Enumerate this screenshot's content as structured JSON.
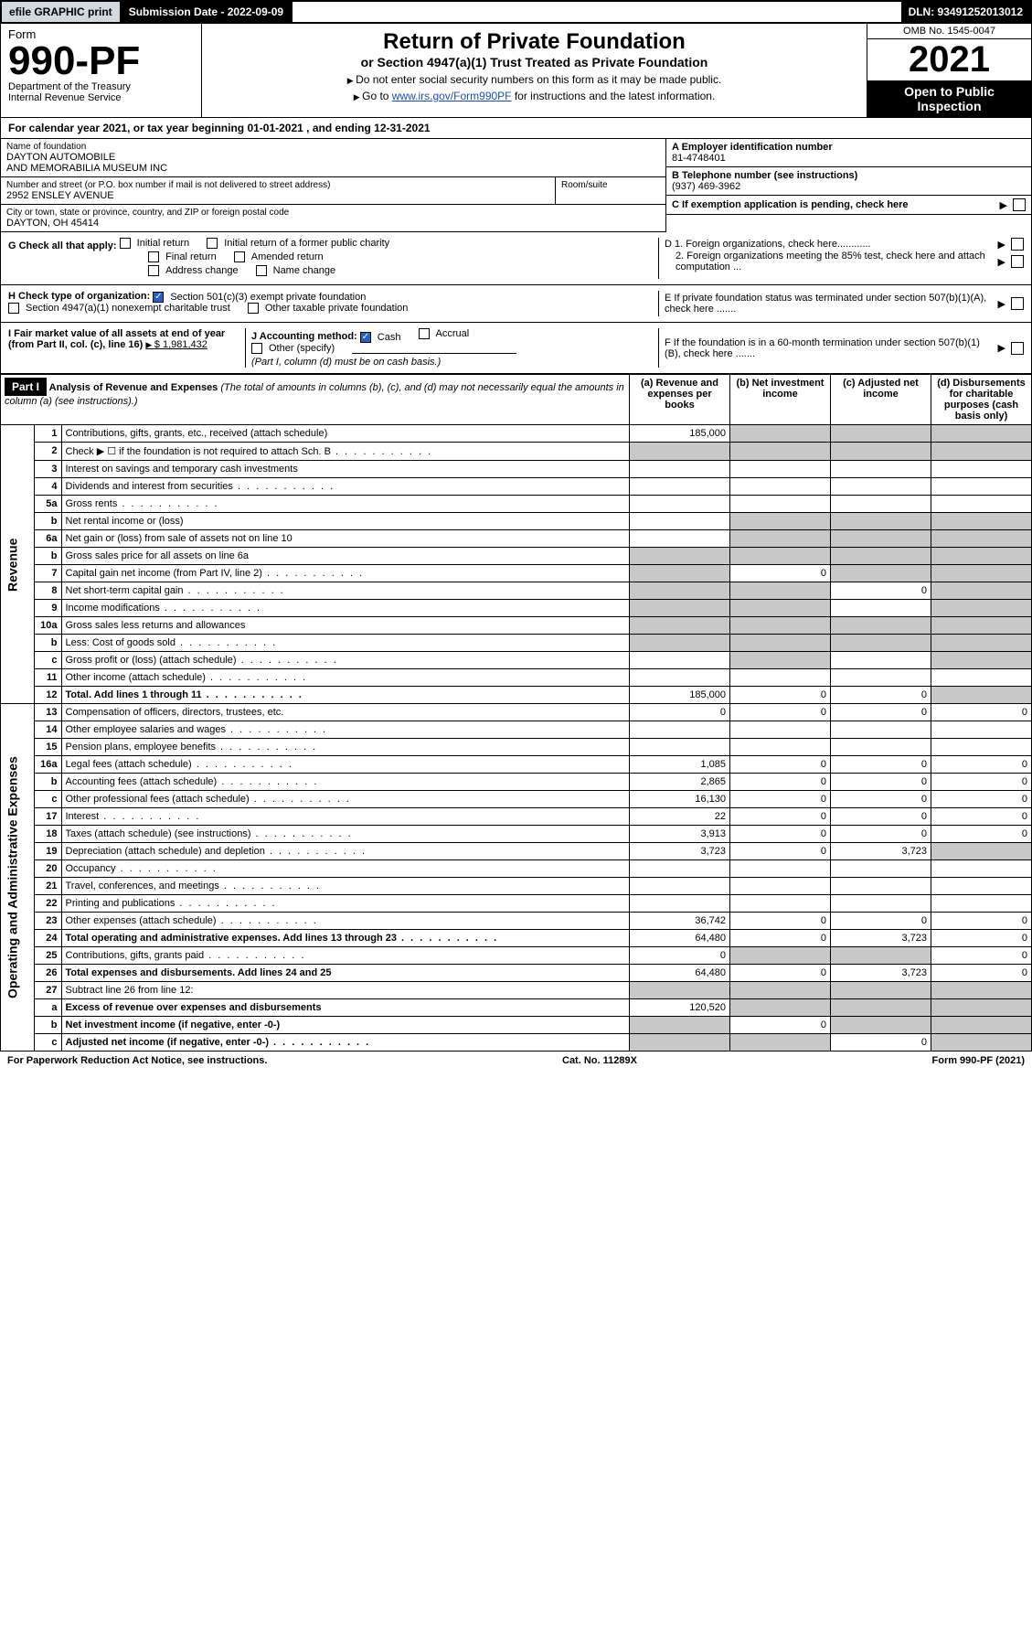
{
  "topbar": {
    "efile": "efile GRAPHIC print",
    "submission_label": "Submission Date - 2022-09-09",
    "dln": "DLN: 93491252013012"
  },
  "header": {
    "form_word": "Form",
    "form_no": "990-PF",
    "dept1": "Department of the Treasury",
    "dept2": "Internal Revenue Service",
    "title": "Return of Private Foundation",
    "subtitle": "or Section 4947(a)(1) Trust Treated as Private Foundation",
    "note1": "Do not enter social security numbers on this form as it may be made public.",
    "note2_pre": "Go to ",
    "note2_link": "www.irs.gov/Form990PF",
    "note2_post": " for instructions and the latest information.",
    "omb": "OMB No. 1545-0047",
    "year": "2021",
    "open": "Open to Public Inspection"
  },
  "calyear": "For calendar year 2021, or tax year beginning 01-01-2021            , and ending 12-31-2021",
  "name": {
    "lbl": "Name of foundation",
    "val1": "DAYTON AUTOMOBILE",
    "val2": "AND MEMORABILIA MUSEUM INC"
  },
  "addr": {
    "lbl": "Number and street (or P.O. box number if mail is not delivered to street address)",
    "val": "2952 ENSLEY AVENUE",
    "room_lbl": "Room/suite"
  },
  "city": {
    "lbl": "City or town, state or province, country, and ZIP or foreign postal code",
    "val": "DAYTON, OH  45414"
  },
  "ein": {
    "lbl": "A Employer identification number",
    "val": "81-4748401"
  },
  "phone": {
    "lbl": "B Telephone number (see instructions)",
    "val": "(937) 469-3962"
  },
  "boxC": "C If exemption application is pending, check here",
  "boxD1": "D 1. Foreign organizations, check here............",
  "boxD2": "2. Foreign organizations meeting the 85% test, check here and attach computation ...",
  "boxE": "E  If private foundation status was terminated under section 507(b)(1)(A), check here .......",
  "boxF": "F  If the foundation is in a 60-month termination under section 507(b)(1)(B), check here .......",
  "G": {
    "lbl": "G Check all that apply:",
    "c1": "Initial return",
    "c2": "Initial return of a former public charity",
    "c3": "Final return",
    "c4": "Amended return",
    "c5": "Address change",
    "c6": "Name change"
  },
  "H": {
    "lbl": "H Check type of organization:",
    "c1": "Section 501(c)(3) exempt private foundation",
    "c2": "Section 4947(a)(1) nonexempt charitable trust",
    "c3": "Other taxable private foundation"
  },
  "I": {
    "lbl": "I Fair market value of all assets at end of year (from Part II, col. (c), line 16)",
    "val": "$  1,981,432"
  },
  "J": {
    "lbl": "J Accounting method:",
    "c1": "Cash",
    "c2": "Accrual",
    "c3": "Other (specify)",
    "note": "(Part I, column (d) must be on cash basis.)"
  },
  "part1": {
    "hdr": "Part I",
    "title": "Analysis of Revenue and Expenses",
    "title_note": " (The total of amounts in columns (b), (c), and (d) may not necessarily equal the amounts in column (a) (see instructions).)",
    "col_a": "(a)   Revenue and expenses per books",
    "col_b": "(b)   Net investment income",
    "col_c": "(c)   Adjusted net income",
    "col_d": "(d)   Disbursements for charitable purposes (cash basis only)"
  },
  "vert": {
    "rev": "Revenue",
    "exp": "Operating and Administrative Expenses"
  },
  "rows": [
    {
      "n": "1",
      "d": "Contributions, gifts, grants, etc., received (attach schedule)",
      "a": "185,000",
      "sb": true,
      "sc": true,
      "sd": true
    },
    {
      "n": "2",
      "d": "Check ▶ ☐ if the foundation is not required to attach Sch. B",
      "sa": true,
      "sb": true,
      "sc": true,
      "sd": true,
      "dots": true
    },
    {
      "n": "3",
      "d": "Interest on savings and temporary cash investments"
    },
    {
      "n": "4",
      "d": "Dividends and interest from securities",
      "dots": true
    },
    {
      "n": "5a",
      "d": "Gross rents",
      "dots": true
    },
    {
      "n": "b",
      "d": "Net rental income or (loss)",
      "sb": true,
      "sc": true,
      "sd": true
    },
    {
      "n": "6a",
      "d": "Net gain or (loss) from sale of assets not on line 10",
      "sb": true,
      "sc": true,
      "sd": true
    },
    {
      "n": "b",
      "d": "Gross sales price for all assets on line 6a",
      "sa": true,
      "sb": true,
      "sc": true,
      "sd": true
    },
    {
      "n": "7",
      "d": "Capital gain net income (from Part IV, line 2)",
      "dots": true,
      "sa": true,
      "b": "0",
      "sc": true,
      "sd": true
    },
    {
      "n": "8",
      "d": "Net short-term capital gain",
      "dots": true,
      "sa": true,
      "sb": true,
      "c": "0",
      "sd": true
    },
    {
      "n": "9",
      "d": "Income modifications",
      "dots": true,
      "sa": true,
      "sb": true,
      "sd": true
    },
    {
      "n": "10a",
      "d": "Gross sales less returns and allowances",
      "sa": true,
      "sb": true,
      "sc": true,
      "sd": true
    },
    {
      "n": "b",
      "d": "Less: Cost of goods sold",
      "dots": true,
      "sa": true,
      "sb": true,
      "sc": true,
      "sd": true
    },
    {
      "n": "c",
      "d": "Gross profit or (loss) (attach schedule)",
      "dots": true,
      "sb": true,
      "sd": true
    },
    {
      "n": "11",
      "d": "Other income (attach schedule)",
      "dots": true
    },
    {
      "n": "12",
      "d": "Total. Add lines 1 through 11",
      "dots": true,
      "bold": true,
      "a": "185,000",
      "b": "0",
      "c": "0",
      "sd": true
    },
    {
      "n": "13",
      "d": "Compensation of officers, directors, trustees, etc.",
      "a": "0",
      "b": "0",
      "c": "0",
      "dcol": "0"
    },
    {
      "n": "14",
      "d": "Other employee salaries and wages",
      "dots": true
    },
    {
      "n": "15",
      "d": "Pension plans, employee benefits",
      "dots": true
    },
    {
      "n": "16a",
      "d": "Legal fees (attach schedule)",
      "dots": true,
      "a": "1,085",
      "b": "0",
      "c": "0",
      "dcol": "0"
    },
    {
      "n": "b",
      "d": "Accounting fees (attach schedule)",
      "dots": true,
      "a": "2,865",
      "b": "0",
      "c": "0",
      "dcol": "0"
    },
    {
      "n": "c",
      "d": "Other professional fees (attach schedule)",
      "dots": true,
      "a": "16,130",
      "b": "0",
      "c": "0",
      "dcol": "0"
    },
    {
      "n": "17",
      "d": "Interest",
      "dots": true,
      "a": "22",
      "b": "0",
      "c": "0",
      "dcol": "0"
    },
    {
      "n": "18",
      "d": "Taxes (attach schedule) (see instructions)",
      "dots": true,
      "a": "3,913",
      "b": "0",
      "c": "0",
      "dcol": "0"
    },
    {
      "n": "19",
      "d": "Depreciation (attach schedule) and depletion",
      "dots": true,
      "a": "3,723",
      "b": "0",
      "c": "3,723",
      "sd": true
    },
    {
      "n": "20",
      "d": "Occupancy",
      "dots": true
    },
    {
      "n": "21",
      "d": "Travel, conferences, and meetings",
      "dots": true
    },
    {
      "n": "22",
      "d": "Printing and publications",
      "dots": true
    },
    {
      "n": "23",
      "d": "Other expenses (attach schedule)",
      "dots": true,
      "a": "36,742",
      "b": "0",
      "c": "0",
      "dcol": "0"
    },
    {
      "n": "24",
      "d": "Total operating and administrative expenses. Add lines 13 through 23",
      "dots": true,
      "bold": true,
      "a": "64,480",
      "b": "0",
      "c": "3,723",
      "dcol": "0"
    },
    {
      "n": "25",
      "d": "Contributions, gifts, grants paid",
      "dots": true,
      "a": "0",
      "sb": true,
      "sc": true,
      "dcol": "0"
    },
    {
      "n": "26",
      "d": "Total expenses and disbursements. Add lines 24 and 25",
      "bold": true,
      "a": "64,480",
      "b": "0",
      "c": "3,723",
      "dcol": "0"
    },
    {
      "n": "27",
      "d": "Subtract line 26 from line 12:",
      "sa": true,
      "sb": true,
      "sc": true,
      "sd": true
    },
    {
      "n": "a",
      "d": "Excess of revenue over expenses and disbursements",
      "bold": true,
      "a": "120,520",
      "sb": true,
      "sc": true,
      "sd": true
    },
    {
      "n": "b",
      "d": "Net investment income (if negative, enter -0-)",
      "bold": true,
      "sa": true,
      "b": "0",
      "sc": true,
      "sd": true
    },
    {
      "n": "c",
      "d": "Adjusted net income (if negative, enter -0-)",
      "dots": true,
      "bold": true,
      "sa": true,
      "sb": true,
      "c": "0",
      "sd": true
    }
  ],
  "footer": {
    "left": "For Paperwork Reduction Act Notice, see instructions.",
    "mid": "Cat. No. 11289X",
    "right": "Form 990-PF (2021)"
  },
  "colors": {
    "link": "#1a4bcc",
    "shade": "#c8c8c8",
    "topbar_bg": "#d0d8e0",
    "check_on": "#2060d0"
  }
}
